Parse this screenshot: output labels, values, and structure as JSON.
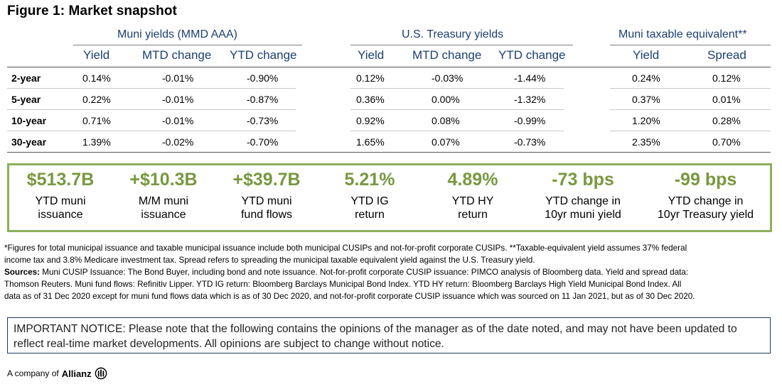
{
  "title": "Figure 1: Market snapshot",
  "groups": {
    "muni": "Muni yields (MMD AAA)",
    "treasury": "U.S. Treasury yields",
    "taxable": "Muni taxable equivalent**"
  },
  "columns": {
    "muni": [
      "Yield",
      "MTD change",
      "YTD change"
    ],
    "treasury": [
      "Yield",
      "MTD change",
      "YTD change"
    ],
    "taxable": [
      "Yield",
      "Spread"
    ]
  },
  "rows": [
    {
      "label": "2-year",
      "muni": [
        "0.14%",
        "-0.01%",
        "-0.90%"
      ],
      "treasury": [
        "0.12%",
        "-0.03%",
        "-1.44%"
      ],
      "taxable": [
        "0.24%",
        "0.12%"
      ]
    },
    {
      "label": "5-year",
      "muni": [
        "0.22%",
        "-0.01%",
        "-0.87%"
      ],
      "treasury": [
        "0.36%",
        "0.00%",
        "-1.32%"
      ],
      "taxable": [
        "0.37%",
        "0.01%"
      ]
    },
    {
      "label": "10-year",
      "muni": [
        "0.71%",
        "-0.01%",
        "-0.73%"
      ],
      "treasury": [
        "0.92%",
        "0.08%",
        "-0.99%"
      ],
      "taxable": [
        "1.20%",
        "0.28%"
      ]
    },
    {
      "label": "30-year",
      "muni": [
        "1.39%",
        "-0.02%",
        "-0.70%"
      ],
      "treasury": [
        "1.65%",
        "0.07%",
        "-0.73%"
      ],
      "taxable": [
        "2.35%",
        "0.70%"
      ]
    }
  ],
  "metrics": [
    {
      "value": "$513.7B",
      "line1": "YTD muni",
      "line2": "issuance"
    },
    {
      "value": "+$10.3B",
      "line1": "M/M muni",
      "line2": "issuance"
    },
    {
      "value": "+$39.7B",
      "line1": "YTD muni",
      "line2": "fund flows"
    },
    {
      "value": "5.21%",
      "line1": "YTD IG",
      "line2": "return"
    },
    {
      "value": "4.89%",
      "line1": "YTD HY",
      "line2": "return"
    },
    {
      "value": "-73 bps",
      "line1": "YTD change in",
      "line2": "10yr muni yield"
    },
    {
      "value": "-99 bps",
      "line1": "YTD change in",
      "line2": "10yr Treasury yield"
    }
  ],
  "colors": {
    "accent_green": "#77983f",
    "box_border": "#8bb05a",
    "header_blue": "#1b3f6f"
  },
  "footnote": {
    "line1": "*Figures for total municipal issuance and taxable municipal issuance include both municipal CUSIPs and not-for-profit corporate CUSIPs. **Taxable-equivalent yield assumes 37% federal",
    "line2": "income tax and 3.8% Medicare investment tax. Spread refers to spreading the municipal taxable equivalent yield against the U.S. Treasury yield.",
    "sources_label": "Sources:",
    "line3": " Muni CUSIP Issuance: The Bond Buyer, including bond and note issuance. Not-for-profit corporate CUSIP issuance: PIMCO analysis of Bloomberg data. Yield and spread data:",
    "line4": "Thomson Reuters. Muni fund flows: Refinitiv Lipper. YTD IG return: Bloomberg Barclays Municipal Bond Index. YTD HY return: Bloomberg Barclays High Yield Municipal Bond Index. All",
    "line5": "data as of 31 Dec 2020 except for muni fund flows data which is as of 30 Dec 2020, and not-for-profit corporate CUSIP issuance which was sourced on 11 Jan 2021, but as of 30 Dec 2020."
  },
  "notice": {
    "line1": "IMPORTANT NOTICE: Please note that the following contains the opinions of the manager as of the date noted, and may not have been updated to",
    "line2": "reflect real-time market developments. All opinions are subject to change without notice."
  },
  "brand": {
    "prefix": "A company of",
    "name": "Allianz"
  }
}
